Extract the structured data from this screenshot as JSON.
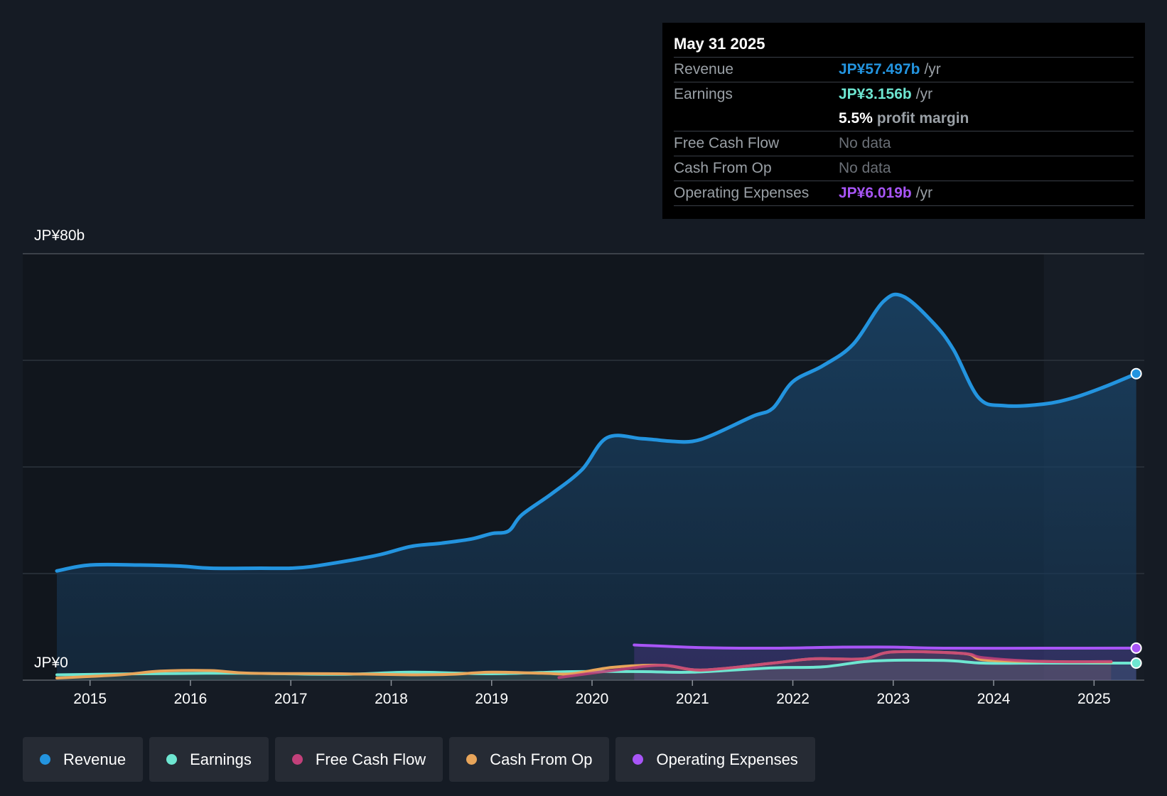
{
  "tooltip": {
    "date": "May 31 2025",
    "rows": [
      {
        "label": "Revenue",
        "value": "JP¥57.497b",
        "unit": "/yr",
        "color": "#2394df"
      },
      {
        "label": "Earnings",
        "value": "JP¥3.156b",
        "unit": "/yr",
        "color": "#6ee6d1"
      },
      {
        "label": "",
        "value": "5.5%",
        "unit": "profit margin",
        "color": "#ffffff"
      },
      {
        "label": "Free Cash Flow",
        "value": "No data",
        "unit": "",
        "color": "#6b7077"
      },
      {
        "label": "Cash From Op",
        "value": "No data",
        "unit": "",
        "color": "#6b7077"
      },
      {
        "label": "Operating Expenses",
        "value": "JP¥6.019b",
        "unit": "/yr",
        "color": "#a855f7"
      }
    ]
  },
  "legend": [
    {
      "label": "Revenue",
      "color": "#2394df"
    },
    {
      "label": "Earnings",
      "color": "#6ee6d1"
    },
    {
      "label": "Free Cash Flow",
      "color": "#c2407a"
    },
    {
      "label": "Cash From Op",
      "color": "#e8a55a"
    },
    {
      "label": "Operating Expenses",
      "color": "#a855f7"
    }
  ],
  "chart_data": {
    "type": "area",
    "y_top_label": "JP¥80b",
    "y_bottom_label": "JP¥0",
    "ylim": [
      0,
      80
    ],
    "xlim": [
      2014.33,
      2025.5
    ],
    "grid": true,
    "x_ticks": [
      "2015",
      "2016",
      "2017",
      "2018",
      "2019",
      "2020",
      "2021",
      "2022",
      "2023",
      "2024",
      "2025"
    ],
    "forecast_start": 2024.5,
    "series": [
      {
        "name": "Revenue",
        "color": "#2394df",
        "points": [
          [
            2014.67,
            20.5
          ],
          [
            2015.0,
            21.6
          ],
          [
            2015.5,
            21.6
          ],
          [
            2015.9,
            21.4
          ],
          [
            2016.2,
            21.0
          ],
          [
            2016.7,
            21.0
          ],
          [
            2017.0,
            21.0
          ],
          [
            2017.2,
            21.3
          ],
          [
            2017.6,
            22.5
          ],
          [
            2017.9,
            23.6
          ],
          [
            2018.2,
            25.1
          ],
          [
            2018.5,
            25.7
          ],
          [
            2018.8,
            26.5
          ],
          [
            2019.0,
            27.5
          ],
          [
            2019.17,
            28.0
          ],
          [
            2019.3,
            31.0
          ],
          [
            2019.6,
            35.0
          ],
          [
            2019.9,
            39.5
          ],
          [
            2020.15,
            45.5
          ],
          [
            2020.5,
            45.3
          ],
          [
            2020.8,
            44.8
          ],
          [
            2021.0,
            44.8
          ],
          [
            2021.2,
            46.0
          ],
          [
            2021.6,
            49.5
          ],
          [
            2021.8,
            51.0
          ],
          [
            2022.0,
            56.0
          ],
          [
            2022.3,
            59.0
          ],
          [
            2022.6,
            63.0
          ],
          [
            2022.9,
            71.0
          ],
          [
            2023.1,
            72.0
          ],
          [
            2023.4,
            67.0
          ],
          [
            2023.6,
            62.0
          ],
          [
            2023.85,
            53.0
          ],
          [
            2024.1,
            51.5
          ],
          [
            2024.5,
            51.8
          ],
          [
            2024.8,
            53.0
          ],
          [
            2025.1,
            55.0
          ],
          [
            2025.42,
            57.5
          ]
        ]
      },
      {
        "name": "Earnings",
        "color": "#6ee6d1",
        "points": [
          [
            2014.67,
            1.0
          ],
          [
            2015.5,
            1.2
          ],
          [
            2016.5,
            1.3
          ],
          [
            2017.5,
            1.1
          ],
          [
            2018.2,
            1.5
          ],
          [
            2019.0,
            1.2
          ],
          [
            2019.8,
            1.6
          ],
          [
            2020.5,
            1.6
          ],
          [
            2021.0,
            1.5
          ],
          [
            2021.8,
            2.3
          ],
          [
            2022.3,
            2.5
          ],
          [
            2022.8,
            3.6
          ],
          [
            2023.5,
            3.7
          ],
          [
            2023.9,
            3.2
          ],
          [
            2024.5,
            3.2
          ],
          [
            2025.42,
            3.2
          ]
        ]
      },
      {
        "name": "Free Cash Flow",
        "color": "#c2407a",
        "points": [
          [
            2019.67,
            0.5
          ],
          [
            2020.2,
            1.8
          ],
          [
            2020.7,
            2.8
          ],
          [
            2021.1,
            1.9
          ],
          [
            2021.8,
            3.2
          ],
          [
            2022.2,
            4.0
          ],
          [
            2022.7,
            4.0
          ],
          [
            2023.0,
            5.3
          ],
          [
            2023.7,
            5.0
          ],
          [
            2023.9,
            4.2
          ],
          [
            2024.5,
            3.5
          ],
          [
            2025.17,
            3.5
          ]
        ]
      },
      {
        "name": "Cash From Op",
        "color": "#e8a55a",
        "points": [
          [
            2014.67,
            0.4
          ],
          [
            2015.3,
            1.0
          ],
          [
            2015.7,
            1.7
          ],
          [
            2016.2,
            1.8
          ],
          [
            2016.6,
            1.3
          ],
          [
            2017.5,
            1.2
          ],
          [
            2018.2,
            1.0
          ],
          [
            2018.6,
            1.1
          ],
          [
            2019.0,
            1.5
          ],
          [
            2019.5,
            1.3
          ],
          [
            2019.8,
            1.2
          ],
          [
            2020.2,
            2.4
          ],
          [
            2020.7,
            2.8
          ],
          [
            2021.1,
            1.9
          ],
          [
            2021.8,
            3.2
          ],
          [
            2022.2,
            4.0
          ],
          [
            2022.7,
            4.0
          ],
          [
            2023.0,
            5.3
          ],
          [
            2023.7,
            5.0
          ],
          [
            2023.9,
            3.8
          ],
          [
            2024.5,
            3.5
          ],
          [
            2025.17,
            3.4
          ]
        ]
      },
      {
        "name": "Operating Expenses",
        "color": "#a855f7",
        "points": [
          [
            2020.42,
            6.6
          ],
          [
            2021.1,
            6.1
          ],
          [
            2021.8,
            6.0
          ],
          [
            2022.5,
            6.2
          ],
          [
            2023.0,
            6.2
          ],
          [
            2023.5,
            6.0
          ],
          [
            2024.5,
            6.0
          ],
          [
            2025.42,
            6.02
          ]
        ]
      }
    ]
  }
}
